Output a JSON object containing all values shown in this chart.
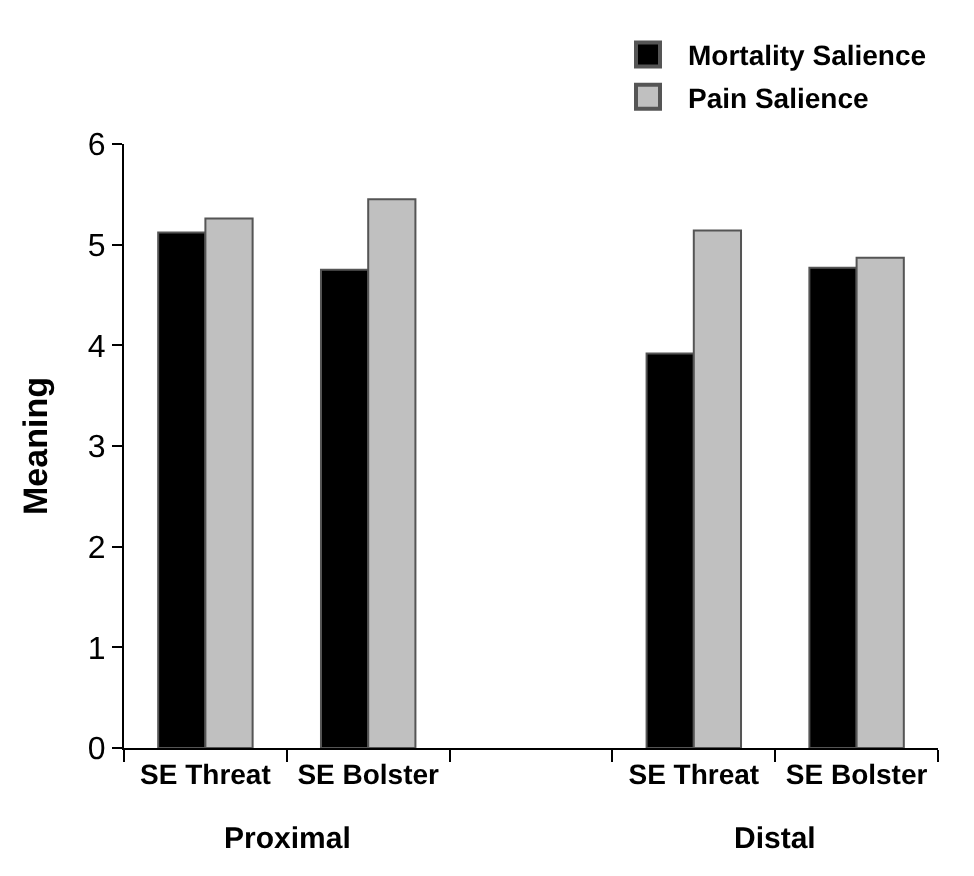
{
  "chart_data": {
    "type": "bar",
    "ylabel": "Meaning",
    "categories": [
      "SE Threat",
      "SE Bolster",
      null,
      "SE Threat",
      "SE Bolster"
    ],
    "series": [
      {
        "name": "Mortality Salience",
        "color": "#000000",
        "values": [
          5.12,
          4.75,
          null,
          3.92,
          4.77
        ]
      },
      {
        "name": "Pain Salience",
        "color": "#c0c0c0",
        "values": [
          5.26,
          5.45,
          null,
          5.14,
          4.87
        ]
      }
    ],
    "annotations": [
      "Proximal",
      "Distal"
    ],
    "ylim": [
      0,
      6
    ],
    "yticks": [
      0,
      1,
      2,
      3,
      4,
      5,
      6
    ],
    "legend": "top right"
  }
}
